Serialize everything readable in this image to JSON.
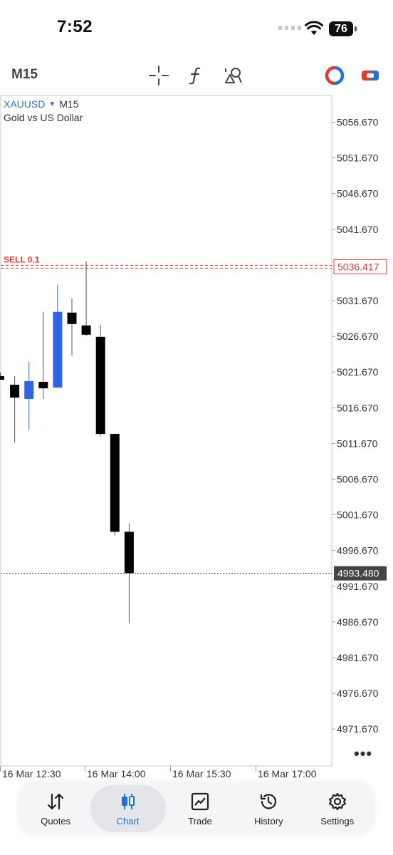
{
  "status_bar": {
    "time": "7:52",
    "battery": "76"
  },
  "toolbar": {
    "timeframe": "M15",
    "icons": [
      "crosshair-icon",
      "function-icon",
      "objects-icon",
      "one-click-trading-icon",
      "trade-panel-icon"
    ]
  },
  "chart": {
    "symbol": "XAUUSD",
    "symbol_timeframe": "M15",
    "description": "Gold vs US Dollar",
    "order_line": {
      "label": "SELL 0.1",
      "price": "5036.417",
      "color": "#e53935"
    },
    "current_price": {
      "value": "4993.480",
      "color": "#444444"
    },
    "more_icon": "more-icon"
  },
  "chart_data": {
    "type": "candlestick",
    "y_ticks": [
      "5056.670",
      "5051.670",
      "5046.670",
      "5041.670",
      "5031.670",
      "5026.670",
      "5021.670",
      "5016.670",
      "5011.670",
      "5006.670",
      "5001.670",
      "4996.670",
      "4991.670",
      "4986.670",
      "4981.670",
      "4976.670",
      "4971.670"
    ],
    "x_ticks": [
      "16 Mar 12:30",
      "16 Mar 14:00",
      "16 Mar 15:30",
      "16 Mar 17:00"
    ],
    "candles": [
      {
        "o": 5021.1,
        "h": 5021.6,
        "l": 5020.6,
        "c": 5020.6,
        "color": "black",
        "partial": true
      },
      {
        "o": 5019.9,
        "h": 5021.1,
        "l": 5011.8,
        "c": 5018.1,
        "color": "black"
      },
      {
        "o": 5017.9,
        "h": 5023.1,
        "l": 5013.6,
        "c": 5020.4,
        "color": "blue"
      },
      {
        "o": 5020.3,
        "h": 5030.1,
        "l": 5017.9,
        "c": 5019.4,
        "color": "black"
      },
      {
        "o": 5019.5,
        "h": 5033.9,
        "l": 5019.5,
        "c": 5030.1,
        "color": "blue"
      },
      {
        "o": 5030.0,
        "h": 5032.0,
        "l": 5024.0,
        "c": 5028.4,
        "color": "black"
      },
      {
        "o": 5028.2,
        "h": 5037.2,
        "l": 5026.7,
        "c": 5026.9,
        "color": "black"
      },
      {
        "o": 5026.6,
        "h": 5028.3,
        "l": 5012.7,
        "c": 5013.0,
        "color": "black"
      },
      {
        "o": 5013.0,
        "h": 5013.0,
        "l": 4998.8,
        "c": 4999.3,
        "color": "black"
      },
      {
        "o": 4999.3,
        "h": 5000.5,
        "l": 4986.5,
        "c": 4993.5,
        "color": "black"
      }
    ]
  },
  "nav": [
    {
      "label": "Quotes",
      "icon": "quotes-icon",
      "active": false
    },
    {
      "label": "Chart",
      "icon": "chart-icon",
      "active": true
    },
    {
      "label": "Trade",
      "icon": "trade-icon",
      "active": false
    },
    {
      "label": "History",
      "icon": "history-icon",
      "active": false
    },
    {
      "label": "Settings",
      "icon": "settings-icon",
      "active": false
    }
  ]
}
